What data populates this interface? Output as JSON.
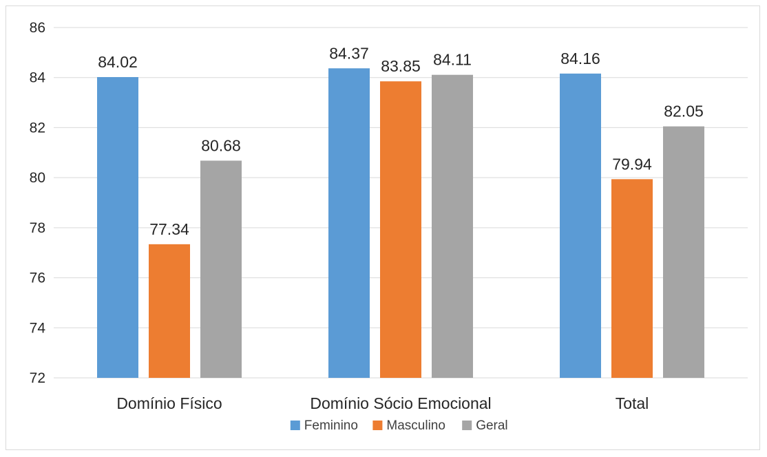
{
  "chart_data": {
    "type": "bar",
    "title": "",
    "xlabel": "",
    "ylabel": "",
    "categories": [
      "Domínio Físico",
      "Domínio Sócio Emocional",
      "Total"
    ],
    "series": [
      {
        "name": "Feminino",
        "color": "#5b9bd5",
        "values": [
          84.02,
          84.37,
          84.16
        ]
      },
      {
        "name": "Masculino",
        "color": "#ed7d31",
        "values": [
          77.34,
          83.85,
          79.94
        ]
      },
      {
        "name": "Geral",
        "color": "#a5a5a5",
        "values": [
          80.68,
          84.11,
          82.05
        ]
      }
    ],
    "ylim": [
      72,
      86
    ],
    "yticks": [
      72,
      74,
      76,
      78,
      80,
      82,
      84,
      86
    ],
    "grid": true,
    "legend": "bottom",
    "data_labels": true
  }
}
